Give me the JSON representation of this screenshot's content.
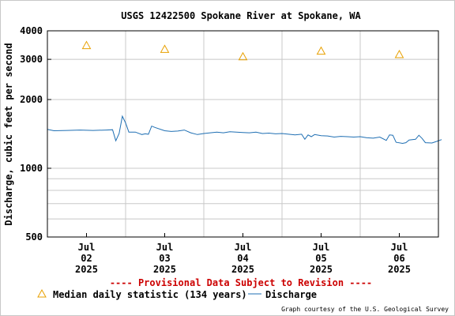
{
  "chart_data": {
    "type": "line",
    "title": "USGS 12422500 Spokane River at Spokane, WA",
    "ylabel": "Discharge, cubic feet per second",
    "xlabel": "",
    "y_scale": "log",
    "ylim": [
      500,
      4000
    ],
    "y_ticks": [
      {
        "value": 500,
        "label": "500"
      },
      {
        "value": 1000,
        "label": "1000"
      },
      {
        "value": 2000,
        "label": "2000"
      },
      {
        "value": 3000,
        "label": "3000"
      },
      {
        "value": 4000,
        "label": "4000"
      }
    ],
    "y_minor_grid": [
      600,
      700,
      800,
      900
    ],
    "x_range": [
      "2025-07-01T12:00",
      "2025-07-06T12:00"
    ],
    "x_ticks": [
      {
        "value": "2025-07-02T00:00",
        "lines": [
          "Jul",
          "02",
          "2025"
        ]
      },
      {
        "value": "2025-07-03T00:00",
        "lines": [
          "Jul",
          "03",
          "2025"
        ]
      },
      {
        "value": "2025-07-04T00:00",
        "lines": [
          "Jul",
          "04",
          "2025"
        ]
      },
      {
        "value": "2025-07-05T00:00",
        "lines": [
          "Jul",
          "05",
          "2025"
        ]
      },
      {
        "value": "2025-07-06T00:00",
        "lines": [
          "Jul",
          "06",
          "2025"
        ]
      }
    ],
    "day_grid": [
      "2025-07-02T12:00",
      "2025-07-03T12:00",
      "2025-07-04T12:00",
      "2025-07-05T12:00"
    ],
    "grid": true,
    "series": [
      {
        "name": "Discharge",
        "kind": "line",
        "color": "#1f6fb3",
        "points": [
          [
            "2025-07-01T12:00",
            1480
          ],
          [
            "2025-07-01T14:00",
            1460
          ],
          [
            "2025-07-01T18:00",
            1465
          ],
          [
            "2025-07-01T22:00",
            1470
          ],
          [
            "2025-07-02T02:00",
            1465
          ],
          [
            "2025-07-02T06:00",
            1470
          ],
          [
            "2025-07-02T08:00",
            1475
          ],
          [
            "2025-07-02T09:00",
            1320
          ],
          [
            "2025-07-02T10:00",
            1420
          ],
          [
            "2025-07-02T11:00",
            1690
          ],
          [
            "2025-07-02T12:00",
            1580
          ],
          [
            "2025-07-02T13:00",
            1440
          ],
          [
            "2025-07-02T15:00",
            1440
          ],
          [
            "2025-07-02T17:00",
            1405
          ],
          [
            "2025-07-02T18:00",
            1415
          ],
          [
            "2025-07-02T19:00",
            1410
          ],
          [
            "2025-07-02T20:00",
            1530
          ],
          [
            "2025-07-02T21:00",
            1510
          ],
          [
            "2025-07-03T00:00",
            1460
          ],
          [
            "2025-07-03T02:00",
            1450
          ],
          [
            "2025-07-03T04:00",
            1455
          ],
          [
            "2025-07-03T06:00",
            1470
          ],
          [
            "2025-07-03T08:00",
            1430
          ],
          [
            "2025-07-03T10:00",
            1405
          ],
          [
            "2025-07-03T12:00",
            1420
          ],
          [
            "2025-07-03T14:00",
            1430
          ],
          [
            "2025-07-03T16:00",
            1440
          ],
          [
            "2025-07-03T18:00",
            1430
          ],
          [
            "2025-07-03T20:00",
            1445
          ],
          [
            "2025-07-03T22:00",
            1440
          ],
          [
            "2025-07-04T00:00",
            1435
          ],
          [
            "2025-07-04T02:00",
            1430
          ],
          [
            "2025-07-04T04:00",
            1440
          ],
          [
            "2025-07-04T06:00",
            1420
          ],
          [
            "2025-07-04T08:00",
            1425
          ],
          [
            "2025-07-04T10:00",
            1415
          ],
          [
            "2025-07-04T12:00",
            1420
          ],
          [
            "2025-07-04T14:00",
            1410
          ],
          [
            "2025-07-04T16:00",
            1400
          ],
          [
            "2025-07-04T18:00",
            1410
          ],
          [
            "2025-07-04T19:00",
            1340
          ],
          [
            "2025-07-04T20:00",
            1400
          ],
          [
            "2025-07-04T21:00",
            1375
          ],
          [
            "2025-07-04T22:00",
            1405
          ],
          [
            "2025-07-05T00:00",
            1390
          ],
          [
            "2025-07-05T02:00",
            1385
          ],
          [
            "2025-07-05T04:00",
            1370
          ],
          [
            "2025-07-05T06:00",
            1380
          ],
          [
            "2025-07-05T08:00",
            1375
          ],
          [
            "2025-07-05T10:00",
            1370
          ],
          [
            "2025-07-05T12:00",
            1375
          ],
          [
            "2025-07-05T14:00",
            1360
          ],
          [
            "2025-07-05T16:00",
            1355
          ],
          [
            "2025-07-05T18:00",
            1370
          ],
          [
            "2025-07-05T20:00",
            1325
          ],
          [
            "2025-07-05T21:00",
            1400
          ],
          [
            "2025-07-05T22:00",
            1395
          ],
          [
            "2025-07-05T23:00",
            1300
          ],
          [
            "2025-07-06T01:00",
            1285
          ],
          [
            "2025-07-06T02:00",
            1295
          ],
          [
            "2025-07-06T03:00",
            1330
          ],
          [
            "2025-07-06T05:00",
            1340
          ],
          [
            "2025-07-06T06:00",
            1395
          ],
          [
            "2025-07-06T07:00",
            1350
          ],
          [
            "2025-07-06T08:00",
            1295
          ],
          [
            "2025-07-06T10:00",
            1290
          ],
          [
            "2025-07-06T11:00",
            1305
          ],
          [
            "2025-07-06T12:00",
            1320
          ],
          [
            "2025-07-06T13:00",
            1335
          ]
        ]
      },
      {
        "name": "Median daily statistic (134 years)",
        "kind": "marker",
        "marker": "triangle",
        "color": "#e8a000",
        "points": [
          [
            "2025-07-02T00:00",
            3450
          ],
          [
            "2025-07-03T00:00",
            3320
          ],
          [
            "2025-07-04T00:00",
            3080
          ],
          [
            "2025-07-05T00:00",
            3260
          ],
          [
            "2025-07-06T00:00",
            3150
          ]
        ]
      }
    ],
    "annotations": {
      "provisional": "---- Provisional Data Subject to Revision ----",
      "provisional_color": "#cc0000",
      "courtesy": "Graph courtesy of the U.S. Geological Survey"
    },
    "legend": {
      "placement": "bottom-left",
      "entries": [
        "Median daily statistic (134 years)",
        "Discharge"
      ]
    }
  }
}
